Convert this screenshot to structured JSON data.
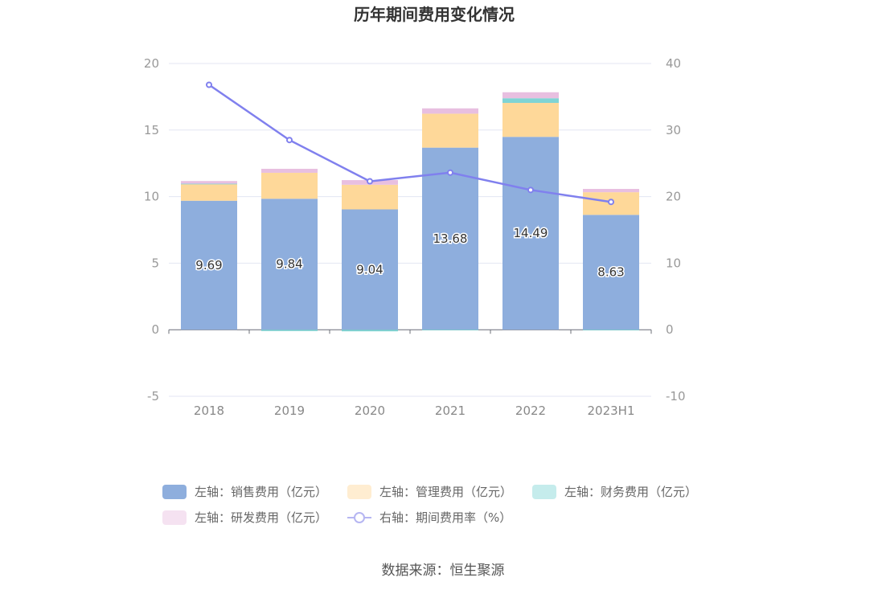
{
  "chart_data": {
    "type": "bar",
    "title": "历年期间费用变化情况",
    "categories": [
      "2018",
      "2019",
      "2020",
      "2021",
      "2022",
      "2023H1"
    ],
    "series": [
      {
        "name": "左轴：销售费用（亿元）",
        "axis": "left",
        "stack": true,
        "color": "#8eaedd",
        "values": [
          9.69,
          9.84,
          9.04,
          13.68,
          14.49,
          8.63
        ]
      },
      {
        "name": "左轴：管理费用（亿元）",
        "axis": "left",
        "stack": true,
        "color": "#fed899",
        "values": [
          1.25,
          1.95,
          1.85,
          2.55,
          2.55,
          1.7
        ]
      },
      {
        "name": "左轴：财务费用（亿元）",
        "axis": "left",
        "stack": true,
        "color": "#7fd4d4",
        "values": [
          0.03,
          -0.1,
          -0.12,
          -0.04,
          0.35,
          -0.05
        ]
      },
      {
        "name": "左轴：研发费用（亿元）",
        "axis": "left",
        "stack": true,
        "color": "#e8bfe0",
        "values": [
          0.2,
          0.3,
          0.35,
          0.4,
          0.45,
          0.25
        ]
      },
      {
        "name": "右轴：期间费用率（%）",
        "axis": "right",
        "type": "line",
        "color": "#8080ee",
        "values": [
          36.8,
          28.5,
          22.3,
          23.6,
          21.0,
          19.2
        ]
      }
    ],
    "yleft": {
      "min": -5,
      "max": 20,
      "ticks": [
        "-5",
        "0",
        "5",
        "10",
        "15",
        "20"
      ]
    },
    "yright": {
      "min": -10,
      "max": 40,
      "ticks": [
        "-10",
        "0",
        "10",
        "20",
        "30",
        "40"
      ]
    },
    "bar_labels": [
      "9.69",
      "9.84",
      "9.04",
      "13.68",
      "14.49",
      "8.63"
    ],
    "grid": true,
    "legend_position": "bottom",
    "source": "数据来源：恒生聚源"
  }
}
